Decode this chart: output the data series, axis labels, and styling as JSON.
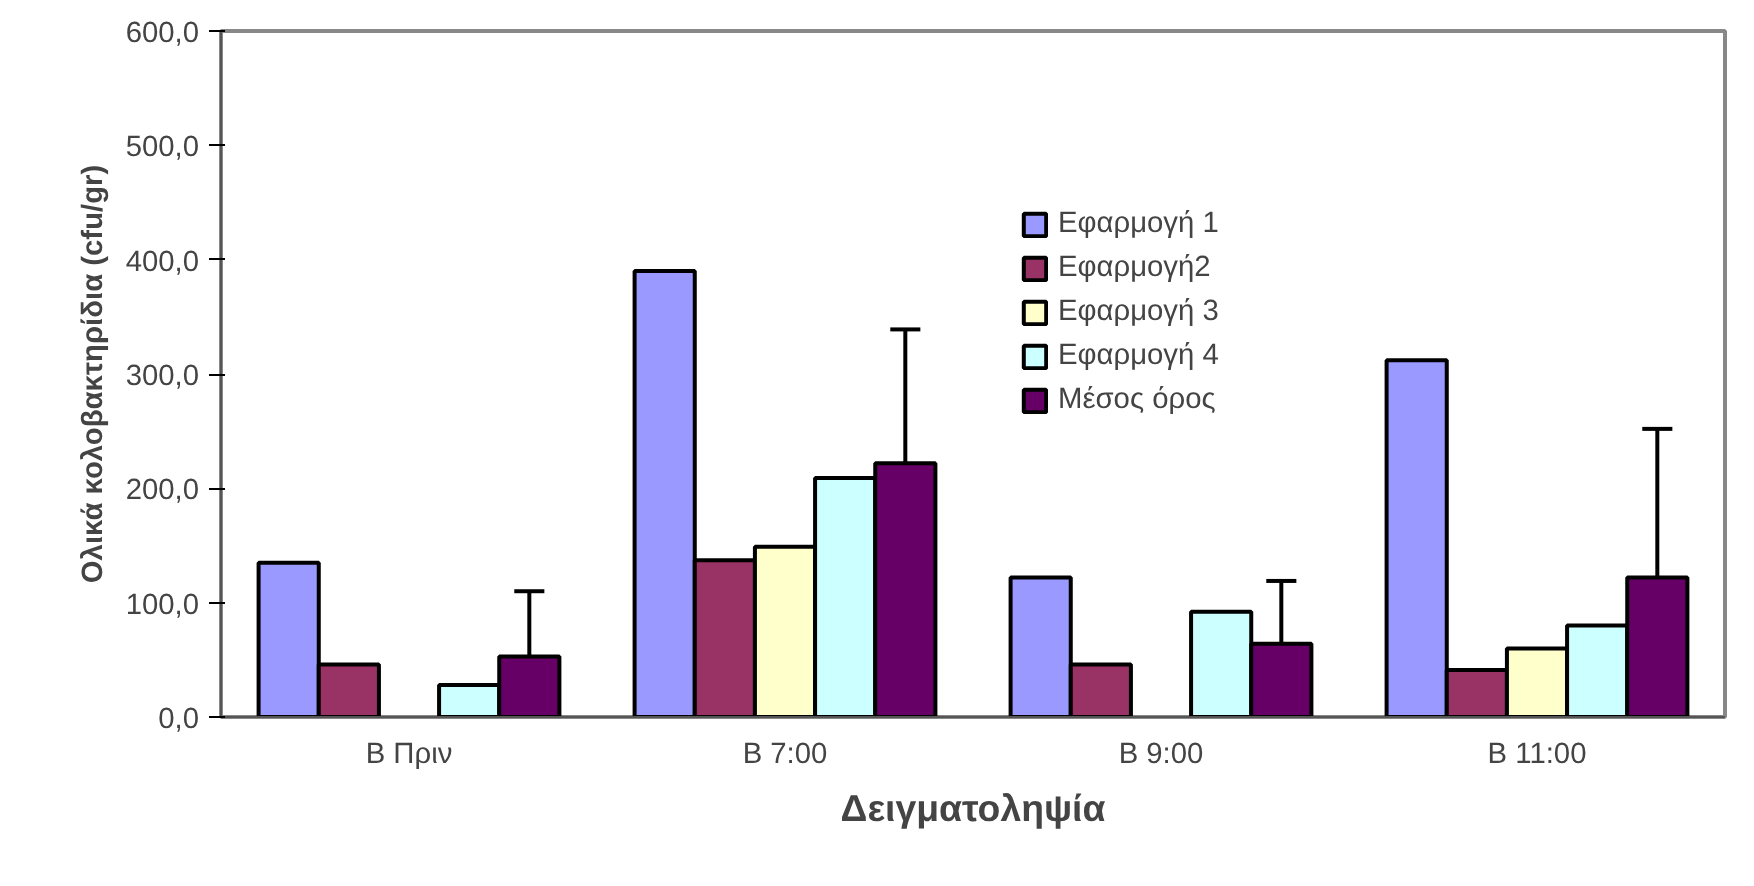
{
  "chart_data": {
    "type": "bar",
    "xlabel": "Δειγματοληψία",
    "ylabel": "Ολικά κολοβακτηρίδια (cfu/gr)",
    "categories": [
      "Β Πριν",
      "Β 7:00",
      "Β 9:00",
      "Β 11:00"
    ],
    "series": [
      {
        "name": "Εφαρμογή 1",
        "color": "#9999ff",
        "values": [
          135,
          390,
          122,
          312
        ]
      },
      {
        "name": "Εφαρμογή2",
        "color": "#993366",
        "values": [
          46,
          137,
          46,
          41
        ]
      },
      {
        "name": "Εφαρμογή 3",
        "color": "#ffffcc",
        "values": [
          null,
          149,
          null,
          60
        ]
      },
      {
        "name": "Εφαρμογή 4",
        "color": "#ccffff",
        "values": [
          28,
          209,
          92,
          80
        ]
      },
      {
        "name": "Μέσος όρος",
        "color": "#660066",
        "values": [
          53,
          222,
          64,
          122
        ],
        "errors": [
          [
            53,
            110
          ],
          [
            222,
            339
          ],
          [
            64,
            119
          ],
          [
            122,
            252
          ]
        ]
      }
    ],
    "ylim": [
      0,
      600
    ],
    "yticks": [
      {
        "value": 0,
        "label": "0,0"
      },
      {
        "value": 100,
        "label": "100,0"
      },
      {
        "value": 200,
        "label": "200,0"
      },
      {
        "value": 300,
        "label": "300,0"
      },
      {
        "value": 400,
        "label": "400,0"
      },
      {
        "value": 500,
        "label": "500,0"
      },
      {
        "value": 600,
        "label": "600,0"
      }
    ],
    "grid": false,
    "legend": "top right"
  }
}
